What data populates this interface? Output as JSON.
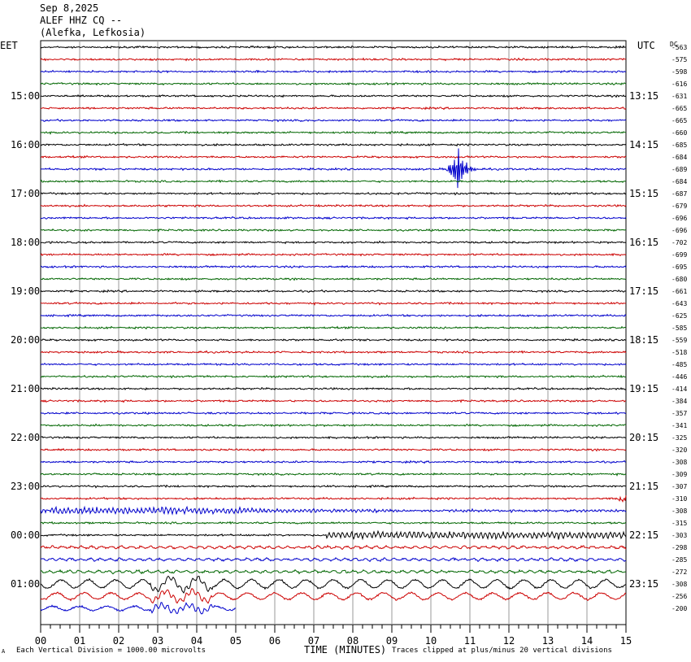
{
  "chart_data": {
    "type": "line",
    "title_lines": [
      "Sep 8,2025",
      "ALEF HHZ CQ --",
      "(Alefka, Lefkosia)"
    ],
    "left_tz": "EET",
    "right_tz": "UTC",
    "dc_label": "DC",
    "xlabel": "TIME (MINUTES)",
    "x_ticks": [
      "00",
      "01",
      "02",
      "03",
      "04",
      "05",
      "06",
      "07",
      "08",
      "09",
      "10",
      "11",
      "12",
      "13",
      "14",
      "15"
    ],
    "xlim": [
      0,
      15
    ],
    "left_hour_labels": [
      "15:00",
      "16:00",
      "17:00",
      "18:00",
      "19:00",
      "20:00",
      "21:00",
      "22:00",
      "23:00",
      "00:00",
      "01:00"
    ],
    "right_hour_labels": [
      "13:15",
      "14:15",
      "15:15",
      "16:15",
      "17:15",
      "18:15",
      "19:15",
      "20:15",
      "21:15",
      "22:15",
      "23:15"
    ],
    "trace_colors": [
      "#000000",
      "#cc0000",
      "#0000cc",
      "#006600"
    ],
    "dc_offsets": [
      "-563",
      "-575",
      "-598",
      "-616",
      "-631",
      "-665",
      "-665",
      "-660",
      "-685",
      "-684",
      "-689",
      "-684",
      "-687",
      "-679",
      "-696",
      "-696",
      "-702",
      "-699",
      "-695",
      "-680",
      "-661",
      "-643",
      "-625",
      "-585",
      "-559",
      "-518",
      "-485",
      "-446",
      "-414",
      "-384",
      "-357",
      "-341",
      "-325",
      "-320",
      "-308",
      "-309",
      "-307",
      "-310",
      "-308",
      "-315",
      "-303",
      "-298",
      "-285",
      "-272",
      "-308",
      "-256",
      "-200"
    ],
    "footer_left": "Each Vertical Division = 1000.00 microvolts",
    "footer_right": "Traces clipped at plus/minus 20 vertical divisions",
    "corner_mark": "A"
  }
}
